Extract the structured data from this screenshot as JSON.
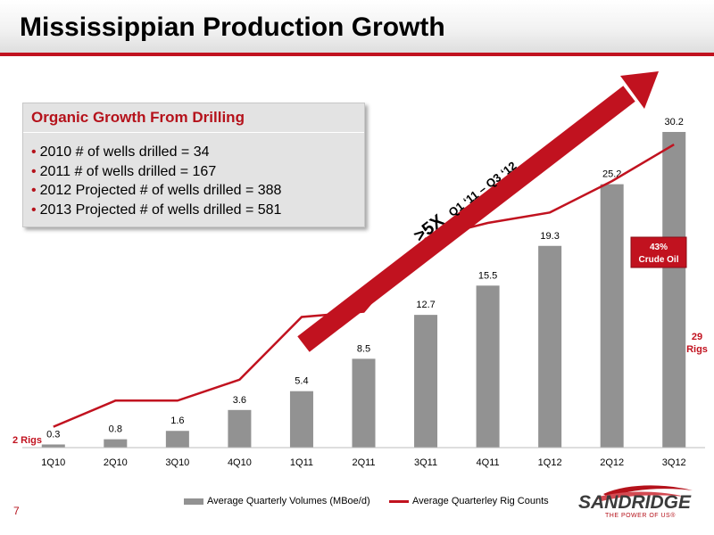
{
  "title": "Mississippian Production Growth",
  "callout": {
    "title": "Organic Growth From Drilling",
    "bullets": [
      "2010 # of wells drilled = 34",
      "2011 # of wells drilled = 167",
      "2012 Projected # of wells drilled = 388",
      "2013 Projected # of wells drilled = 581"
    ]
  },
  "growth_arrow": {
    "big": ">5X",
    "small": "Q1 ‘11 – Q3 ‘12"
  },
  "crude_badge": {
    "line1": "43%",
    "line2": "Crude Oil"
  },
  "rig_labels": {
    "start": "2 Rigs",
    "end_num": "29",
    "end_word": "Rigs"
  },
  "legend": {
    "bars": "Average Quarterly Volumes (MBoe/d)",
    "line": "Average Quarterley Rig Counts"
  },
  "logo": {
    "word": "SANDRIDGE",
    "tagline": "THE POWER OF US®"
  },
  "page_number": "7",
  "colors": {
    "accent": "#c1121f",
    "bar": "#929292",
    "callout_bg": "#e3e3e3"
  },
  "chart_data": {
    "type": "bar",
    "categories": [
      "1Q10",
      "2Q10",
      "3Q10",
      "4Q10",
      "1Q11",
      "2Q11",
      "3Q11",
      "4Q11",
      "1Q12",
      "2Q12",
      "3Q12"
    ],
    "series": [
      {
        "name": "Average Quarterly Volumes (MBoe/d)",
        "type": "bar",
        "values": [
          0.3,
          0.8,
          1.6,
          3.6,
          5.4,
          8.5,
          12.7,
          15.5,
          19.3,
          25.2,
          30.2
        ],
        "data_labels": [
          "0.3",
          "0.8",
          "1.6",
          "3.6",
          "5.4",
          "8.5",
          "12.7",
          "15.5",
          "19.3",
          "25.2",
          "30.2"
        ]
      },
      {
        "name": "Average Quarterley Rig Counts",
        "type": "line",
        "values": [
          2,
          4.5,
          4.5,
          6.5,
          12.5,
          13,
          20,
          21.5,
          22.5,
          25.5,
          29
        ]
      }
    ],
    "ylim": [
      0,
      36
    ],
    "legend_position": "bottom",
    "grid": false
  }
}
